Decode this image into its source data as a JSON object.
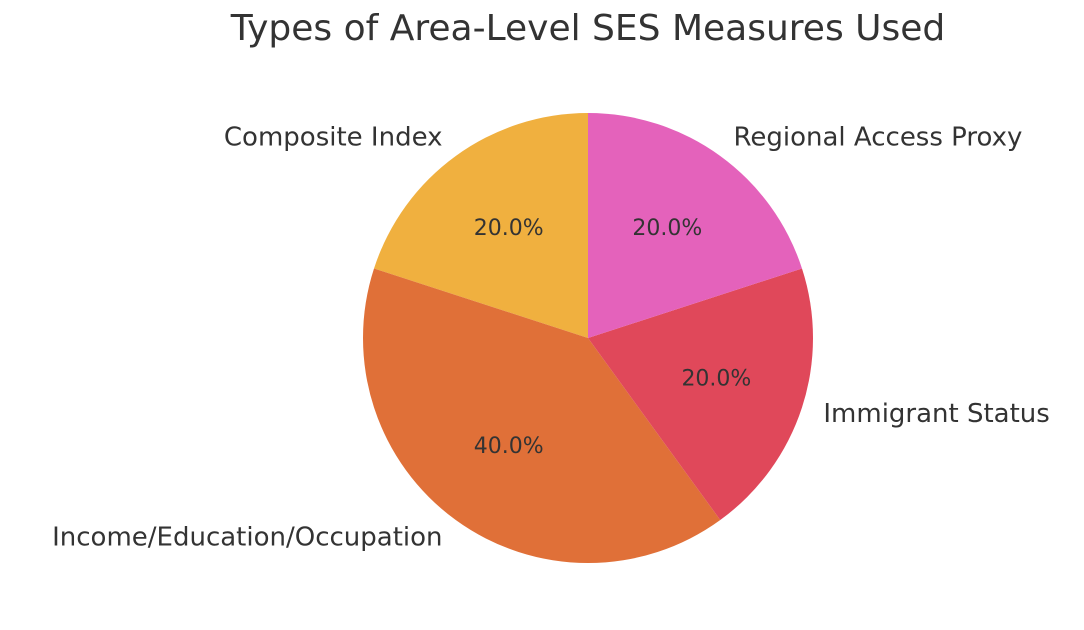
{
  "chart_data": {
    "type": "pie",
    "title": "Types of Area-Level SES Measures Used",
    "categories": [
      "Composite Index",
      "Income/Education/Occupation",
      "Immigrant Status",
      "Regional Access Proxy"
    ],
    "values": [
      20,
      40,
      20,
      20
    ],
    "value_labels": [
      "20.0%",
      "40.0%",
      "20.0%",
      "20.0%"
    ],
    "colors": [
      "#f0b03f",
      "#e07038",
      "#e0485a",
      "#e462bb"
    ]
  }
}
